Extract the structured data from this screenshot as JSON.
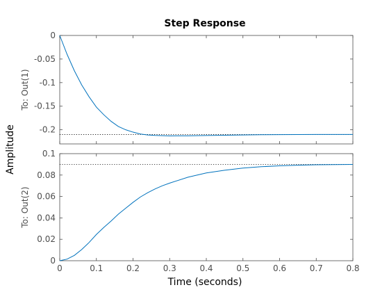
{
  "colors": {
    "line": "#0072bd",
    "axis": "#4d4d4d",
    "reference": "#000000",
    "background": "#ffffff"
  },
  "chart_data": {
    "type": "line",
    "title": "Step Response",
    "xlabel": "Time (seconds)",
    "ylabel": "Amplitude",
    "xlim": [
      0,
      0.8
    ],
    "x_ticks": [
      "0",
      "0.1",
      "0.2",
      "0.3",
      "0.4",
      "0.5",
      "0.6",
      "0.7",
      "0.8"
    ],
    "grid": false,
    "panels": [
      {
        "label": "To: Out(1)",
        "ylim": [
          -0.23,
          0
        ],
        "y_ticks": [
          "0",
          "-0.05",
          "-0.1",
          "-0.15",
          "-0.2"
        ],
        "steady_state": -0.21,
        "x": [
          0,
          0.02,
          0.04,
          0.06,
          0.08,
          0.1,
          0.12,
          0.14,
          0.16,
          0.18,
          0.2,
          0.22,
          0.24,
          0.26,
          0.28,
          0.3,
          0.35,
          0.4,
          0.45,
          0.5,
          0.55,
          0.6,
          0.65,
          0.7,
          0.75,
          0.8
        ],
        "y": [
          0,
          -0.04,
          -0.075,
          -0.105,
          -0.13,
          -0.152,
          -0.168,
          -0.182,
          -0.193,
          -0.2,
          -0.205,
          -0.209,
          -0.211,
          -0.212,
          -0.2125,
          -0.213,
          -0.2128,
          -0.2122,
          -0.2115,
          -0.211,
          -0.2105,
          -0.2102,
          -0.2101,
          -0.21,
          -0.21,
          -0.21
        ]
      },
      {
        "label": "To: Out(2)",
        "ylim": [
          0,
          0.1
        ],
        "y_ticks": [
          "0",
          "0.02",
          "0.04",
          "0.06",
          "0.08",
          "0.1"
        ],
        "steady_state": 0.09,
        "x": [
          0,
          0.02,
          0.04,
          0.06,
          0.08,
          0.1,
          0.12,
          0.14,
          0.16,
          0.18,
          0.2,
          0.22,
          0.24,
          0.26,
          0.28,
          0.3,
          0.35,
          0.4,
          0.45,
          0.5,
          0.55,
          0.6,
          0.65,
          0.7,
          0.75,
          0.8
        ],
        "y": [
          0,
          0.0015,
          0.005,
          0.0105,
          0.017,
          0.0245,
          0.031,
          0.037,
          0.0435,
          0.049,
          0.0545,
          0.0595,
          0.0635,
          0.067,
          0.07,
          0.0725,
          0.078,
          0.082,
          0.0845,
          0.0865,
          0.0878,
          0.0886,
          0.0892,
          0.0896,
          0.0898,
          0.0899
        ]
      }
    ]
  }
}
